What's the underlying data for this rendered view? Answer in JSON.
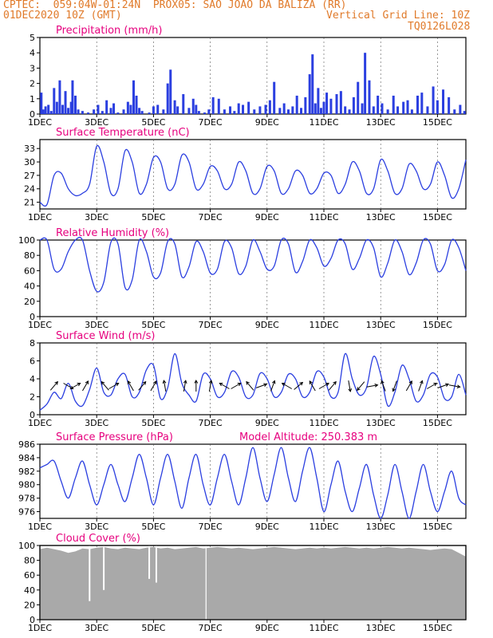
{
  "header": {
    "line1": "CPTEC:  059:04W-01:24N  PROX05: SAO JOAO DA BALIZA (RR)",
    "date": "01DEC2020 10Z (GMT)",
    "grid_note": "Vertical Grid Line: 10Z",
    "code": "TQ0126L028",
    "color": "#e07a2a"
  },
  "colors": {
    "title": "#e6007e",
    "series": "#2b3fe0",
    "cloud": "#a9a9a9",
    "arrow": "#000000",
    "grid": "#555555"
  },
  "x_ticks": [
    "1DEC",
    "3DEC",
    "5DEC",
    "7DEC",
    "9DEC",
    "11DEC",
    "13DEC",
    "15DEC"
  ],
  "x_tick_days": [
    0,
    2,
    4,
    6,
    8,
    10,
    12,
    14
  ],
  "x_range_days": [
    0,
    15
  ],
  "chart_data": [
    {
      "id": "precip",
      "type": "bar",
      "title": "Precipitation (mm/h)",
      "ylim": [
        0,
        5
      ],
      "yticks": [
        0,
        1,
        2,
        3,
        4,
        5
      ],
      "x_days": [
        0.05,
        0.12,
        0.2,
        0.3,
        0.4,
        0.5,
        0.6,
        0.7,
        0.8,
        0.9,
        1.0,
        1.1,
        1.15,
        1.25,
        1.35,
        1.5,
        1.7,
        1.9,
        2.05,
        2.2,
        2.35,
        2.5,
        2.6,
        2.75,
        2.95,
        3.1,
        3.2,
        3.3,
        3.4,
        3.5,
        3.6,
        3.85,
        4.0,
        4.15,
        4.35,
        4.5,
        4.6,
        4.75,
        4.85,
        5.05,
        5.25,
        5.4,
        5.5,
        5.6,
        5.8,
        5.95,
        6.1,
        6.3,
        6.5,
        6.7,
        6.85,
        7.0,
        7.15,
        7.35,
        7.55,
        7.75,
        7.95,
        8.1,
        8.25,
        8.45,
        8.6,
        8.75,
        8.9,
        9.05,
        9.2,
        9.35,
        9.5,
        9.6,
        9.7,
        9.8,
        9.9,
        10.0,
        10.1,
        10.25,
        10.45,
        10.6,
        10.75,
        10.9,
        11.05,
        11.2,
        11.35,
        11.45,
        11.6,
        11.75,
        11.9,
        12.05,
        12.25,
        12.45,
        12.6,
        12.8,
        12.95,
        13.1,
        13.3,
        13.45,
        13.65,
        13.85,
        14.0,
        14.2,
        14.4,
        14.6,
        14.8,
        14.95
      ],
      "values": [
        1.4,
        0.3,
        0.5,
        0.6,
        0.2,
        1.7,
        0.8,
        2.2,
        0.6,
        1.5,
        0.4,
        0.8,
        2.2,
        1.2,
        0.3,
        0.2,
        0.1,
        0.3,
        0.6,
        0.2,
        0.9,
        0.4,
        0.7,
        0.1,
        0.3,
        0.8,
        0.6,
        2.2,
        1.2,
        0.4,
        0.2,
        0.1,
        0.5,
        0.6,
        0.3,
        2.0,
        2.9,
        0.9,
        0.5,
        1.3,
        0.4,
        1.0,
        0.6,
        0.2,
        0.1,
        0.3,
        1.1,
        1.0,
        0.3,
        0.5,
        0.2,
        0.7,
        0.6,
        0.8,
        0.3,
        0.5,
        0.6,
        0.9,
        2.1,
        0.4,
        0.7,
        0.3,
        0.5,
        1.2,
        0.4,
        1.1,
        2.6,
        3.9,
        0.7,
        1.7,
        0.4,
        0.8,
        1.4,
        1.0,
        1.3,
        1.5,
        0.5,
        0.3,
        1.1,
        2.1,
        0.7,
        4.0,
        2.2,
        0.5,
        1.2,
        0.7,
        0.3,
        1.2,
        0.5,
        0.8,
        0.9,
        0.3,
        1.2,
        1.4,
        0.5,
        1.8,
        0.9,
        1.6,
        1.1,
        0.3,
        0.6,
        0.2
      ]
    },
    {
      "id": "temp",
      "type": "line",
      "title": "Surface Temperature (nC)",
      "ylim": [
        19.5,
        35
      ],
      "yticks": [
        21,
        24,
        27,
        30,
        33
      ],
      "x_days": [
        0,
        0.25,
        0.5,
        0.75,
        1.0,
        1.25,
        1.5,
        1.75,
        2.0,
        2.25,
        2.5,
        2.75,
        3.0,
        3.25,
        3.5,
        3.75,
        4.0,
        4.25,
        4.5,
        4.75,
        5.0,
        5.25,
        5.5,
        5.75,
        6.0,
        6.25,
        6.5,
        6.75,
        7.0,
        7.25,
        7.5,
        7.75,
        8.0,
        8.25,
        8.5,
        8.75,
        9.0,
        9.25,
        9.5,
        9.75,
        10.0,
        10.25,
        10.5,
        10.75,
        11.0,
        11.25,
        11.5,
        11.75,
        12.0,
        12.25,
        12.5,
        12.75,
        13.0,
        13.25,
        13.5,
        13.75,
        14.0,
        14.25,
        14.5,
        14.75,
        15.0
      ],
      "values": [
        21,
        20.5,
        27,
        27.5,
        24,
        22.5,
        23,
        25,
        33.5,
        30,
        23,
        24,
        32.5,
        30,
        23,
        25,
        31,
        30,
        24,
        25,
        31.5,
        30,
        24,
        25,
        29,
        28,
        24,
        25,
        30,
        28,
        23,
        24,
        29,
        28,
        23,
        24,
        28,
        27,
        23,
        24,
        27.5,
        27,
        23,
        25,
        30,
        28,
        23,
        24,
        30.5,
        28,
        23,
        24,
        29.5,
        28,
        24,
        25,
        30,
        27,
        22,
        24,
        30.5
      ]
    },
    {
      "id": "rh",
      "type": "line",
      "title": "Relative Humidity (%)",
      "ylim": [
        0,
        100
      ],
      "yticks": [
        0,
        20,
        40,
        60,
        80,
        100
      ],
      "x_days": [
        0,
        0.25,
        0.5,
        0.75,
        1.0,
        1.25,
        1.5,
        1.75,
        2.0,
        2.25,
        2.5,
        2.75,
        3.0,
        3.25,
        3.5,
        3.75,
        4.0,
        4.25,
        4.5,
        4.75,
        5.0,
        5.25,
        5.5,
        5.75,
        6.0,
        6.25,
        6.5,
        6.75,
        7.0,
        7.25,
        7.5,
        7.75,
        8.0,
        8.25,
        8.5,
        8.75,
        9.0,
        9.25,
        9.5,
        9.75,
        10.0,
        10.25,
        10.5,
        10.75,
        11.0,
        11.25,
        11.5,
        11.75,
        12.0,
        12.25,
        12.5,
        12.75,
        13.0,
        13.25,
        13.5,
        13.75,
        14.0,
        14.25,
        14.5,
        14.75,
        15.0
      ],
      "values": [
        100,
        100,
        62,
        62,
        85,
        100,
        100,
        60,
        33,
        45,
        97,
        95,
        38,
        48,
        100,
        85,
        52,
        57,
        98,
        95,
        52,
        65,
        98,
        85,
        57,
        62,
        98,
        90,
        56,
        66,
        100,
        85,
        62,
        66,
        100,
        95,
        58,
        72,
        100,
        90,
        66,
        76,
        100,
        95,
        62,
        76,
        100,
        90,
        52,
        70,
        100,
        85,
        55,
        70,
        100,
        95,
        60,
        68,
        100,
        90,
        60
      ]
    },
    {
      "id": "wind",
      "type": "line",
      "title": "Surface Wind (m/s)",
      "ylim": [
        0,
        8
      ],
      "yticks": [
        0,
        2,
        4,
        6,
        8
      ],
      "x_days": [
        0,
        0.25,
        0.5,
        0.75,
        1.0,
        1.25,
        1.5,
        1.75,
        2.0,
        2.25,
        2.5,
        2.75,
        3.0,
        3.25,
        3.5,
        3.75,
        4.0,
        4.25,
        4.5,
        4.75,
        5.0,
        5.25,
        5.5,
        5.75,
        6.0,
        6.25,
        6.5,
        6.75,
        7.0,
        7.25,
        7.5,
        7.75,
        8.0,
        8.25,
        8.5,
        8.75,
        9.0,
        9.25,
        9.5,
        9.75,
        10.0,
        10.25,
        10.5,
        10.75,
        11.0,
        11.25,
        11.5,
        11.75,
        12.0,
        12.25,
        12.5,
        12.75,
        13.0,
        13.25,
        13.5,
        13.75,
        14.0,
        14.25,
        14.5,
        14.75,
        15.0
      ],
      "values": [
        0.5,
        1.2,
        2.5,
        1.8,
        3.5,
        1.5,
        1.0,
        2.8,
        5.2,
        2.5,
        2.2,
        4.0,
        4.5,
        2.0,
        2.5,
        5.0,
        5.5,
        1.8,
        3.0,
        6.8,
        3.5,
        2.2,
        1.5,
        4.5,
        4.0,
        2.0,
        2.5,
        4.8,
        4.2,
        2.0,
        2.2,
        4.6,
        4.0,
        2.0,
        2.5,
        4.5,
        4.0,
        2.0,
        2.5,
        4.8,
        4.2,
        2.0,
        2.5,
        6.8,
        4.0,
        2.2,
        3.0,
        6.5,
        4.5,
        1.0,
        2.5,
        5.5,
        4.0,
        1.5,
        2.2,
        4.5,
        4.2,
        1.8,
        2.0,
        4.5,
        2.2
      ],
      "arrows_days": [
        0.5,
        1.0,
        1.25,
        1.6,
        2.3,
        2.6,
        3.2,
        3.6,
        4.0,
        4.4,
        5.1,
        5.5,
        6.0,
        6.5,
        6.9,
        7.4,
        7.8,
        8.2,
        8.7,
        9.1,
        9.6,
        10.0,
        10.3,
        10.9,
        11.3,
        11.7,
        12.1,
        12.5,
        13.0,
        13.4,
        13.8,
        14.2,
        14.6
      ],
      "arrows_deg": [
        40,
        120,
        60,
        30,
        320,
        60,
        330,
        40,
        30,
        350,
        10,
        0,
        10,
        300,
        60,
        320,
        70,
        20,
        300,
        50,
        330,
        60,
        40,
        170,
        220,
        80,
        340,
        200,
        30,
        20,
        60,
        70,
        100
      ]
    },
    {
      "id": "pres",
      "type": "line",
      "title": "Surface Pressure (hPa)",
      "annotation": "Model Altitude: 250.383 m",
      "ylim": [
        975,
        986
      ],
      "yticks": [
        976,
        978,
        980,
        982,
        984,
        986
      ],
      "x_days": [
        0,
        0.25,
        0.5,
        0.75,
        1.0,
        1.25,
        1.5,
        1.75,
        2.0,
        2.25,
        2.5,
        2.75,
        3.0,
        3.25,
        3.5,
        3.75,
        4.0,
        4.25,
        4.5,
        4.75,
        5.0,
        5.25,
        5.5,
        5.75,
        6.0,
        6.25,
        6.5,
        6.75,
        7.0,
        7.25,
        7.5,
        7.75,
        8.0,
        8.25,
        8.5,
        8.75,
        9.0,
        9.25,
        9.5,
        9.75,
        10.0,
        10.25,
        10.5,
        10.75,
        11.0,
        11.25,
        11.5,
        11.75,
        12.0,
        12.25,
        12.5,
        12.75,
        13.0,
        13.25,
        13.5,
        13.75,
        14.0,
        14.25,
        14.5,
        14.75,
        15.0
      ],
      "values": [
        982.5,
        983.0,
        983.5,
        980.5,
        978.0,
        981.0,
        983.5,
        980.0,
        977.0,
        980.0,
        983.0,
        980.0,
        977.5,
        981.0,
        984.5,
        981.0,
        977.0,
        981.0,
        984.5,
        980.5,
        976.5,
        981.0,
        984.5,
        980.0,
        977.0,
        981.0,
        984.5,
        980.5,
        977.0,
        981.0,
        985.5,
        981.0,
        977.5,
        981.5,
        985.5,
        981.0,
        977.5,
        982.0,
        985.5,
        981.0,
        976.0,
        980.0,
        983.5,
        979.0,
        976.0,
        979.5,
        983.0,
        978.5,
        975.0,
        978.5,
        983.0,
        979.0,
        975.0,
        979.0,
        983.0,
        979.0,
        976.0,
        979.0,
        982.0,
        978.0,
        977.0
      ]
    },
    {
      "id": "cloud",
      "type": "area",
      "title": "Cloud Cover (%)",
      "ylim": [
        0,
        100
      ],
      "yticks": [
        0,
        20,
        40,
        60,
        80,
        100
      ],
      "x_days": [
        0,
        0.25,
        0.5,
        0.75,
        1.0,
        1.25,
        1.5,
        1.75,
        2.0,
        2.25,
        2.5,
        2.75,
        3.0,
        3.25,
        3.5,
        3.75,
        4.0,
        4.25,
        4.5,
        4.75,
        5.0,
        5.25,
        5.5,
        5.75,
        6.0,
        6.25,
        6.5,
        6.75,
        7.0,
        7.25,
        7.5,
        7.75,
        8.0,
        8.25,
        8.5,
        8.75,
        9.0,
        9.25,
        9.5,
        9.75,
        10.0,
        10.25,
        10.5,
        10.75,
        11.0,
        11.25,
        11.5,
        11.75,
        12.0,
        12.25,
        12.5,
        12.75,
        13.0,
        13.25,
        13.5,
        13.75,
        14.0,
        14.25,
        14.5,
        14.75,
        15.0
      ],
      "values": [
        95,
        97,
        95,
        93,
        90,
        92,
        96,
        95,
        97,
        98,
        96,
        95,
        97,
        96,
        95,
        97,
        98,
        96,
        97,
        95,
        96,
        97,
        98,
        96,
        97,
        98,
        97,
        96,
        97,
        96,
        95,
        96,
        97,
        98,
        97,
        96,
        95,
        96,
        97,
        96,
        97,
        96,
        97,
        98,
        97,
        96,
        97,
        96,
        97,
        98,
        97,
        96,
        97,
        96,
        95,
        94,
        95,
        96,
        95,
        90,
        85
      ],
      "dips_days": [
        1.75,
        2.25,
        3.85,
        4.1
      ],
      "dips_values": [
        25,
        40,
        55,
        50
      ]
    }
  ]
}
